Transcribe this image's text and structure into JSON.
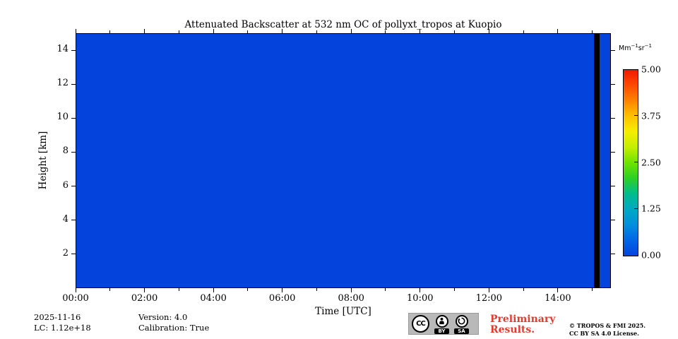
{
  "chart_data": {
    "type": "heatmap",
    "title": "Attenuated Backscatter at 532 nm OC of pollyxt_tropos at Kuopio",
    "xlabel": "Time [UTC]",
    "ylabel": "Height [km]",
    "x_axis": {
      "start_hour": 0,
      "end_hour": 15.54,
      "major_tick_hours": [
        0,
        2,
        4,
        6,
        8,
        10,
        12,
        14
      ],
      "major_tick_labels": [
        "00:00",
        "02:00",
        "04:00",
        "06:00",
        "08:00",
        "10:00",
        "12:00",
        "14:00"
      ],
      "minor_tick_hours": [
        1,
        3,
        5,
        7,
        9,
        11,
        13,
        15
      ]
    },
    "y_axis": {
      "min_km": 0,
      "max_km": 15,
      "major_tick_km": [
        2,
        4,
        6,
        8,
        10,
        12,
        14
      ],
      "major_tick_labels": [
        "2",
        "4",
        "6",
        "8",
        "10",
        "12",
        "14"
      ]
    },
    "colorbar": {
      "min": 0.0,
      "max": 5.0,
      "tick_values": [
        5.0,
        3.75,
        2.5,
        1.25,
        0.0
      ],
      "tick_labels": [
        "5.00",
        "3.75",
        "2.50",
        "1.25",
        "0.00"
      ],
      "unit_parts": {
        "base1": "Mm",
        "sup1": "−1",
        "base2": "sr",
        "sup2": "−1"
      },
      "colormap_bottom_to_top": [
        "#0444dd",
        "#0066e8",
        "#0090dc",
        "#00a9c2",
        "#00bc8f",
        "#2bd125",
        "#6fe300",
        "#c3ef00",
        "#f5ee00",
        "#ffc300",
        "#ff8400",
        "#ff4a00",
        "#f01a00"
      ]
    },
    "field": {
      "description": "Attenuated backscatter is uniform ~0.0 Mm-1 sr-1 (solid blue) over all heights 0-15 km from 00:00 to ~15:30 UTC",
      "uniform_value": 0.0,
      "value_color": "#0444dd",
      "no_data_band": {
        "start_hour": 15.05,
        "end_hour": 15.21,
        "color": "#000000"
      }
    },
    "grid": false,
    "legend": "colorbar right"
  },
  "annotations": {
    "date": "2025-11-16",
    "lc": "LC: 1.12e+18",
    "version": "Version: 4.0",
    "calibration": "Calibration: True",
    "preliminary_line1": "Preliminary",
    "preliminary_line2": "Results.",
    "preliminary_color": "#e8392b",
    "copyright_line1": "© TROPOS & FMI 2025.",
    "copyright_line2": "CC BY SA 4.0 License.",
    "license_badge": {
      "cc": "CC",
      "by": "BY",
      "sa": "SA"
    }
  }
}
